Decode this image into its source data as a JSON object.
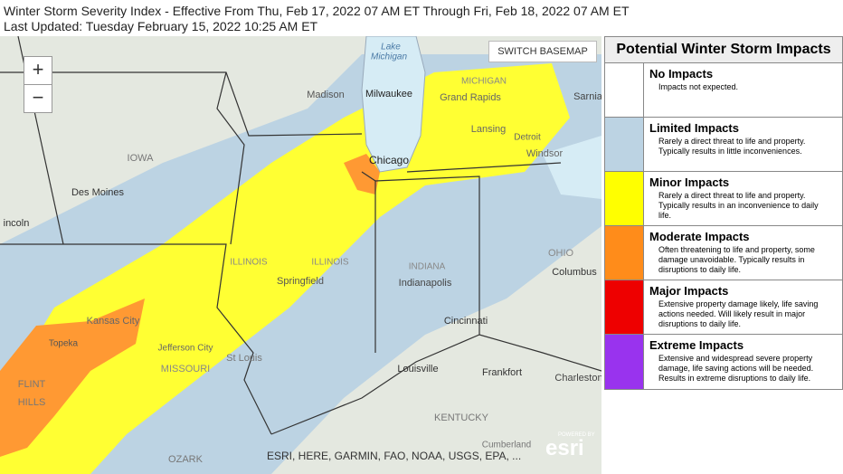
{
  "header": {
    "title": "Winter Storm Severity Index - Effective From Thu, Feb 17, 2022 07 AM ET Through Fri, Feb 18, 2022 07 AM ET",
    "updated": "Last Updated: Tuesday February 15, 2022 10:25 AM ET"
  },
  "map": {
    "zoom_in": "+",
    "zoom_out": "−",
    "switch_basemap": "SWITCH BASEMAP",
    "attribution": "ESRI, HERE, GARMIN, FAO, NOAA, USGS, EPA, ...",
    "logo_small": "POWERED BY",
    "logo": "esri",
    "places": [
      "Lake",
      "Michigan",
      "MICHIGAN",
      "Madison",
      "Milwaukee",
      "Grand Rapids",
      "Sarnia",
      "Lansing",
      "Detroit",
      "Windsor",
      "IOWA",
      "Chicago",
      "Des Moines",
      "incoln",
      "ILLINOIS",
      "ILLINOIS",
      "INDIANA",
      "OHIO",
      "Columbus",
      "Springfield",
      "Indianapolis",
      "Kansas City",
      "Topeka",
      "Jefferson City",
      "Cincinnati",
      "St Louis",
      "MISSOURI",
      "Louisville",
      "Frankfort",
      "Charleston",
      "FLINT",
      "HILLS",
      "KENTUCKY",
      "OZARK",
      "Cumberland"
    ]
  },
  "legend": {
    "title": "Potential Winter Storm Impacts",
    "items": [
      {
        "label": "No Impacts",
        "description": "Impacts not expected.",
        "color": "#ffffff"
      },
      {
        "label": "Limited Impacts",
        "description": "Rarely a direct threat to life and property. Typically results in little inconveniences.",
        "color": "#bcd3e3"
      },
      {
        "label": "Minor Impacts",
        "description": "Rarely a direct threat to life and property. Typically results in an inconvenience to daily life.",
        "color": "#ffff00"
      },
      {
        "label": "Moderate Impacts",
        "description": "Often threatening to life and property, some damage unavoidable. Typically results in disruptions to daily life.",
        "color": "#ff8c1a"
      },
      {
        "label": "Major Impacts",
        "description": "Extensive property damage likely, life saving actions needed. Will likely result in major disruptions to daily life.",
        "color": "#ee0000"
      },
      {
        "label": "Extreme Impacts",
        "description": "Extensive and widespread severe property damage, life saving actions will be needed. Results in extreme disruptions to daily life.",
        "color": "#9933ee"
      }
    ]
  }
}
